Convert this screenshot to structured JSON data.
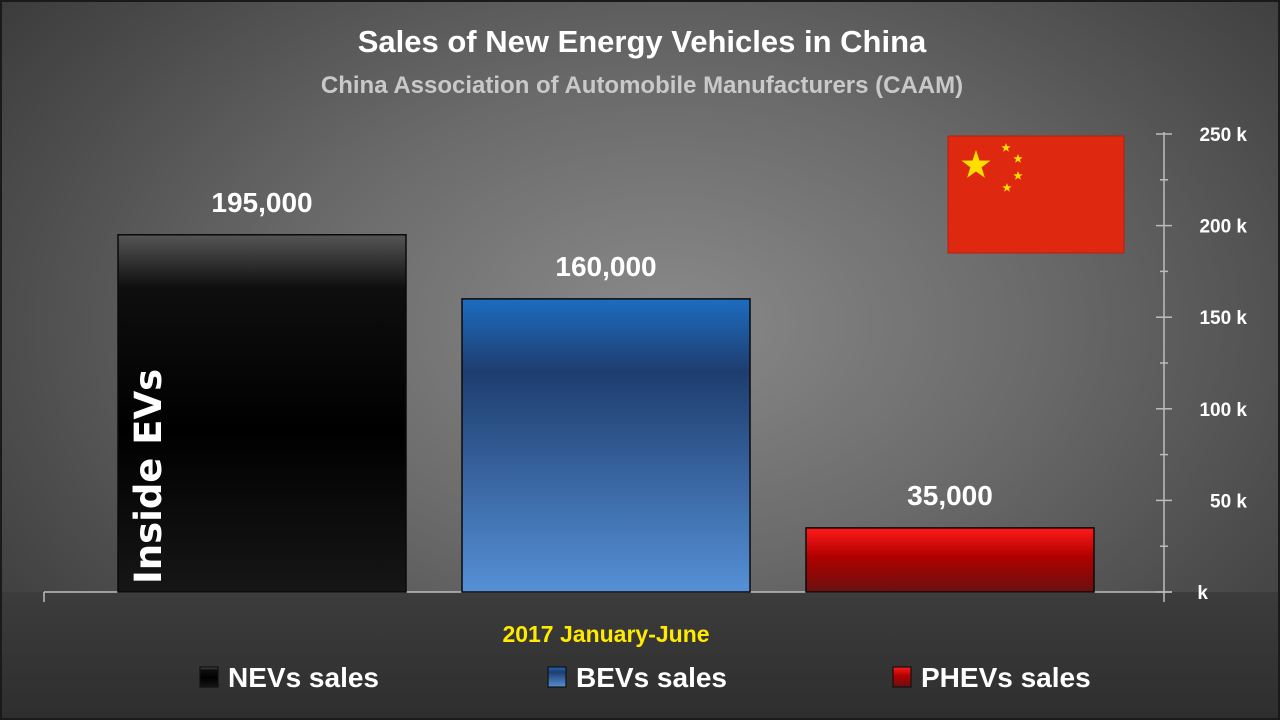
{
  "chart_data": {
    "type": "bar",
    "title": "Sales of New Energy Vehicles in China",
    "subtitle": "China Association of Automobile Manufacturers (CAAM)",
    "categories": [
      "2017 January-June"
    ],
    "series": [
      {
        "name": "NEVs sales",
        "values": [
          195000
        ],
        "value_label": "195,000",
        "color": "#000000"
      },
      {
        "name": "BEVs sales",
        "values": [
          160000
        ],
        "value_label": "160,000",
        "color": "#2f64a8"
      },
      {
        "name": "PHEVs sales",
        "values": [
          35000
        ],
        "value_label": "35,000",
        "color": "#b00000"
      }
    ],
    "ylim": [
      0,
      250000
    ],
    "y_axis_position": "right",
    "yticks": [
      {
        "value": 0,
        "label": "k"
      },
      {
        "value": 50000,
        "label": "50 k"
      },
      {
        "value": 100000,
        "label": "100 k"
      },
      {
        "value": 150000,
        "label": "150 k"
      },
      {
        "value": 200000,
        "label": "200 k"
      },
      {
        "value": 250000,
        "label": "250 k"
      }
    ],
    "grid": false,
    "legend_position": "bottom"
  },
  "watermark": "Inside EVs",
  "decoration": {
    "flag_icon": "china-flag-icon",
    "flag_color": "#de2910",
    "star_color": "#ffde00"
  }
}
